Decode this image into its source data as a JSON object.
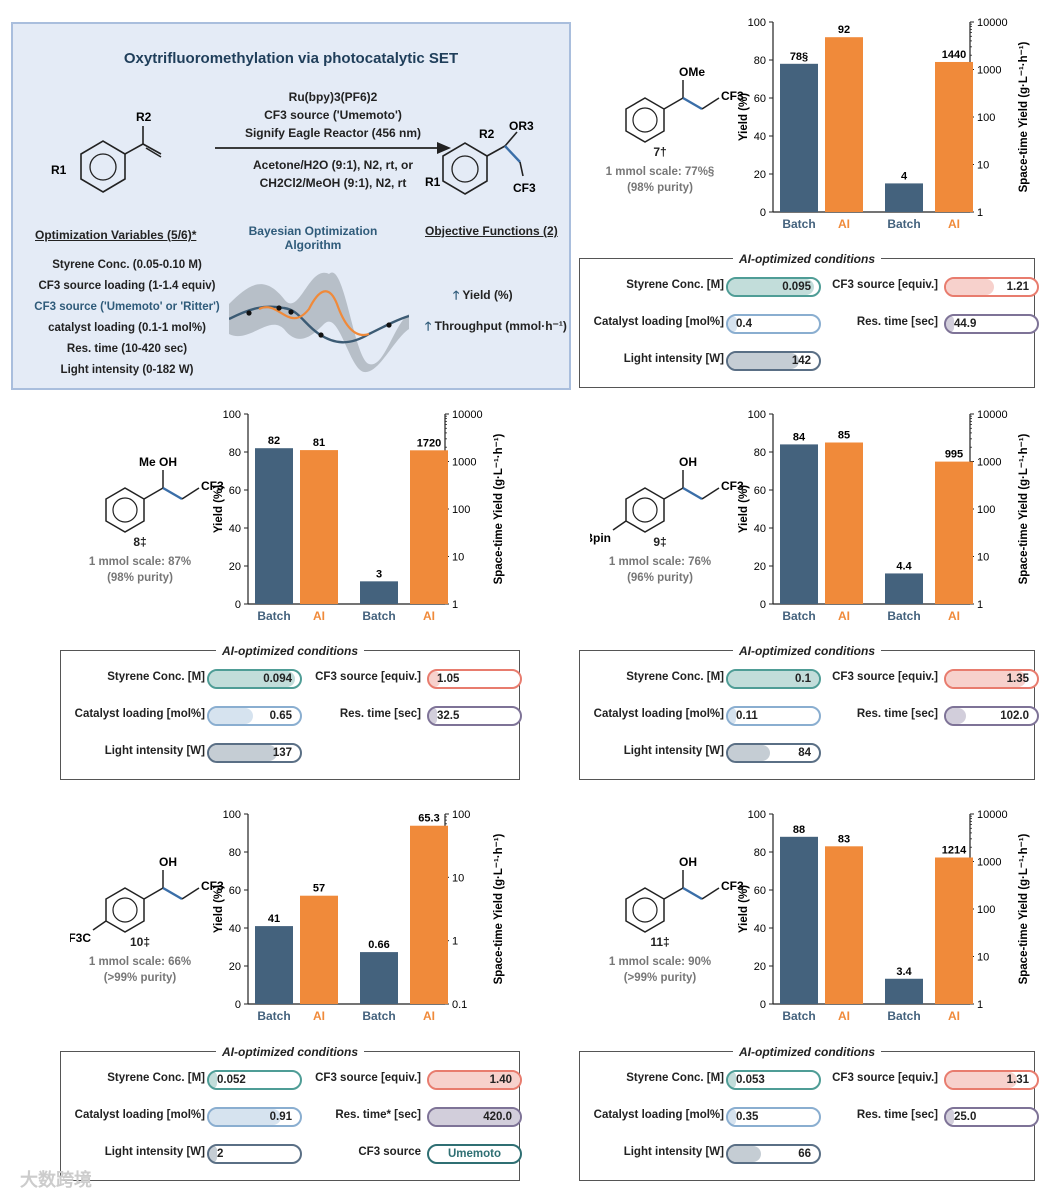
{
  "hero": {
    "title": "Oxytrifluoromethylation via photocatalytic SET",
    "reaction_lines_top": [
      "Ru(bpy)3(PF6)2",
      "CF3 source ('Umemoto')",
      "Signify Eagle Reactor (456 nm)"
    ],
    "reaction_lines_bottom": [
      "Acetone/H2O (9:1), N2, rt, or",
      "CH2Cl2/MeOH (9:1), N2, rt"
    ],
    "substrate_labels": {
      "r1": "R1",
      "r2": "R2"
    },
    "product_labels": {
      "r1": "R1",
      "r2": "R2",
      "or3": "OR3",
      "cf3": "CF3"
    },
    "variables_heading": "Optimization Variables (5/6)*",
    "variables": [
      "Styrene Conc. (0.05-0.10 M)",
      "CF3 source loading (1-1.4 equiv)",
      "CF3 source ('Umemoto' or 'Ritter')",
      "catalyst loading (0.1-1 mol%)",
      "Res. time (10-420 sec)",
      "Light intensity (0-182 W)"
    ],
    "algorithm_heading": "Bayesian Optimization Algorithm",
    "objectives_heading": "Objective Functions (2)",
    "objectives": [
      "Yield (%)",
      "Throughput (mmol·h⁻¹)"
    ]
  },
  "panels": [
    {
      "compound": "7†",
      "substituents": {
        "top": "OMe",
        "side": "CF3",
        "para": ""
      },
      "scale_note": [
        "1 mmol scale: 77%§",
        "(98% purity)"
      ],
      "conditions_title": "AI-optimized conditions",
      "conditions": [
        {
          "label": "Styrene Conc. [M]",
          "value": "0.095",
          "fraction": 0.95,
          "color": "#4f9d96",
          "align": "r"
        },
        {
          "label": "CF3 source [equiv.]",
          "value": "1.21",
          "fraction": 0.53,
          "color": "#e87c6e",
          "align": "r"
        },
        {
          "label": "Catalyst loading [mol%]",
          "value": "0.4",
          "fraction": 0.1,
          "color": "#8aaed0",
          "align": "l"
        },
        {
          "label": "Res. time [sec]",
          "value": "44.9",
          "fraction": 0.08,
          "color": "#7e7397",
          "align": "l"
        },
        {
          "label": "Light intensity [W]",
          "value": "142",
          "fraction": 0.78,
          "color": "#5a6f85",
          "align": "r"
        }
      ]
    },
    {
      "compound": "8‡",
      "substituents": {
        "top": "OH",
        "side": "CF3",
        "para": "",
        "alpha": "Me"
      },
      "scale_note": [
        "1 mmol scale: 87%",
        "(98% purity)"
      ],
      "conditions_title": "AI-optimized conditions",
      "conditions": [
        {
          "label": "Styrene Conc. [M]",
          "value": "0.094",
          "fraction": 0.94,
          "color": "#4f9d96",
          "align": "r"
        },
        {
          "label": "CF3 source [equiv.]",
          "value": "1.05",
          "fraction": 0.12,
          "color": "#e87c6e",
          "align": "l"
        },
        {
          "label": "Catalyst loading [mol%]",
          "value": "0.65",
          "fraction": 0.48,
          "color": "#8aaed0",
          "align": "r"
        },
        {
          "label": "Res. time [sec]",
          "value": "32.5",
          "fraction": 0.06,
          "color": "#7e7397",
          "align": "l"
        },
        {
          "label": "Light intensity [W]",
          "value": "137",
          "fraction": 0.75,
          "color": "#5a6f85",
          "align": "r"
        }
      ]
    },
    {
      "compound": "9‡",
      "substituents": {
        "top": "OH",
        "side": "CF3",
        "para": "Bpin"
      },
      "scale_note": [
        "1 mmol scale: 76%",
        "(96% purity)"
      ],
      "conditions_title": "AI-optimized conditions",
      "conditions": [
        {
          "label": "Styrene Conc. [M]",
          "value": "0.1",
          "fraction": 1.0,
          "color": "#4f9d96",
          "align": "r"
        },
        {
          "label": "CF3 source [equiv.]",
          "value": "1.35",
          "fraction": 0.88,
          "color": "#e87c6e",
          "align": "r"
        },
        {
          "label": "Catalyst loading [mol%]",
          "value": "0.11",
          "fraction": 0.01,
          "color": "#8aaed0",
          "align": "l"
        },
        {
          "label": "Res. time [sec]",
          "value": "102.0",
          "fraction": 0.22,
          "color": "#7e7397",
          "align": "r"
        },
        {
          "label": "Light intensity [W]",
          "value": "84",
          "fraction": 0.46,
          "color": "#5a6f85",
          "align": "r"
        }
      ]
    },
    {
      "compound": "10‡",
      "substituents": {
        "top": "OH",
        "side": "CF3",
        "para": "F3C"
      },
      "scale_note": [
        "1 mmol scale: 66%",
        "(>99% purity)"
      ],
      "conditions_title": "AI-optimized conditions",
      "conditions": [
        {
          "label": "Styrene Conc. [M]",
          "value": "0.052",
          "fraction": 0.04,
          "color": "#4f9d96",
          "align": "l"
        },
        {
          "label": "CF3 source [equiv.]",
          "value": "1.40",
          "fraction": 1.0,
          "color": "#e87c6e",
          "align": "r"
        },
        {
          "label": "Catalyst loading [mol%]",
          "value": "0.91",
          "fraction": 0.79,
          "color": "#8aaed0",
          "align": "r"
        },
        {
          "label": "Res. time* [sec]",
          "value": "420.0",
          "fraction": 1.0,
          "color": "#7e7397",
          "align": "r"
        },
        {
          "label": "Light intensity [W]",
          "value": "2",
          "fraction": 0.01,
          "color": "#5a6f85",
          "align": "l"
        },
        {
          "label": "CF3 source",
          "value": "Umemoto",
          "fraction": 0,
          "color": "#2f6f73",
          "align": "c"
        }
      ]
    },
    {
      "compound": "11‡",
      "substituents": {
        "top": "OH",
        "side": "CF3",
        "para": ""
      },
      "scale_note": [
        "1 mmol scale: 90%",
        "(>99% purity)"
      ],
      "conditions_title": "AI-optimized conditions",
      "conditions": [
        {
          "label": "Styrene Conc. [M]",
          "value": "0.053",
          "fraction": 0.06,
          "color": "#4f9d96",
          "align": "l"
        },
        {
          "label": "CF3 source [equiv.]",
          "value": "1.31",
          "fraction": 0.78,
          "color": "#e87c6e",
          "align": "r"
        },
        {
          "label": "Catalyst loading [mol%]",
          "value": "0.35",
          "fraction": 0.05,
          "color": "#8aaed0",
          "align": "l"
        },
        {
          "label": "Res. time [sec]",
          "value": "25.0",
          "fraction": 0.04,
          "color": "#7e7397",
          "align": "l"
        },
        {
          "label": "Light intensity [W]",
          "value": "66",
          "fraction": 0.36,
          "color": "#5a6f85",
          "align": "r"
        }
      ]
    }
  ],
  "colors": {
    "batch": "#44627d",
    "ai": "#f08a3a",
    "batch_label": "#44627d",
    "ai_label": "#f08a3a"
  },
  "chart_data": [
    {
      "type": "bar",
      "compound": "7",
      "categories": [
        "Batch",
        "AI"
      ],
      "left": {
        "ylabel": "Yield (%)",
        "ylim": [
          0,
          100
        ],
        "ticks": [
          0,
          20,
          40,
          60,
          80,
          100
        ],
        "series": [
          {
            "name": "Batch",
            "value": 78,
            "label": "78§"
          },
          {
            "name": "AI",
            "value": 92,
            "label": "92"
          }
        ]
      },
      "right": {
        "ylabel": "Space-time Yield (g·L⁻¹·h⁻¹)",
        "scale": "log",
        "ylim": [
          1,
          10000
        ],
        "ticks": [
          "1",
          "10",
          "100",
          "1000",
          "10000"
        ],
        "series": [
          {
            "name": "Batch",
            "value": 4,
            "label": "4"
          },
          {
            "name": "AI",
            "value": 1440,
            "label": "1440"
          }
        ]
      }
    },
    {
      "type": "bar",
      "compound": "8",
      "categories": [
        "Batch",
        "AI"
      ],
      "left": {
        "ylabel": "Yield (%)",
        "ylim": [
          0,
          100
        ],
        "ticks": [
          0,
          20,
          40,
          60,
          80,
          100
        ],
        "series": [
          {
            "name": "Batch",
            "value": 82,
            "label": "82"
          },
          {
            "name": "AI",
            "value": 81,
            "label": "81"
          }
        ]
      },
      "right": {
        "ylabel": "Space-time Yield (g·L⁻¹·h⁻¹)",
        "scale": "log",
        "ylim": [
          1,
          10000
        ],
        "ticks": [
          "1",
          "10",
          "100",
          "1000",
          "10000"
        ],
        "series": [
          {
            "name": "Batch",
            "value": 3,
            "label": "3"
          },
          {
            "name": "AI",
            "value": 1720,
            "label": "1720"
          }
        ]
      }
    },
    {
      "type": "bar",
      "compound": "9",
      "categories": [
        "Batch",
        "AI"
      ],
      "left": {
        "ylabel": "Yield (%)",
        "ylim": [
          0,
          100
        ],
        "ticks": [
          0,
          20,
          40,
          60,
          80,
          100
        ],
        "series": [
          {
            "name": "Batch",
            "value": 84,
            "label": "84"
          },
          {
            "name": "AI",
            "value": 85,
            "label": "85"
          }
        ]
      },
      "right": {
        "ylabel": "Space-time Yield (g·L⁻¹·h⁻¹)",
        "scale": "log",
        "ylim": [
          1,
          10000
        ],
        "ticks": [
          "1",
          "10",
          "100",
          "1000",
          "10000"
        ],
        "series": [
          {
            "name": "Batch",
            "value": 4.4,
            "label": "4.4"
          },
          {
            "name": "AI",
            "value": 995,
            "label": "995"
          }
        ]
      }
    },
    {
      "type": "bar",
      "compound": "10",
      "categories": [
        "Batch",
        "AI"
      ],
      "left": {
        "ylabel": "Yield (%)",
        "ylim": [
          0,
          100
        ],
        "ticks": [
          0,
          20,
          40,
          60,
          80,
          100
        ],
        "series": [
          {
            "name": "Batch",
            "value": 41,
            "label": "41"
          },
          {
            "name": "AI",
            "value": 57,
            "label": "57"
          }
        ]
      },
      "right": {
        "ylabel": "Space-time Yield (g·L⁻¹·h⁻¹)",
        "scale": "log",
        "ylim": [
          0.1,
          100
        ],
        "ticks": [
          "0.1",
          "1",
          "10",
          "100"
        ],
        "series": [
          {
            "name": "Batch",
            "value": 0.66,
            "label": "0.66"
          },
          {
            "name": "AI",
            "value": 65.3,
            "label": "65.3"
          }
        ]
      }
    },
    {
      "type": "bar",
      "compound": "11",
      "categories": [
        "Batch",
        "AI"
      ],
      "left": {
        "ylabel": "Yield (%)",
        "ylim": [
          0,
          100
        ],
        "ticks": [
          0,
          20,
          40,
          60,
          80,
          100
        ],
        "series": [
          {
            "name": "Batch",
            "value": 88,
            "label": "88"
          },
          {
            "name": "AI",
            "value": 83,
            "label": "83"
          }
        ]
      },
      "right": {
        "ylabel": "Space-time Yield (g·L⁻¹·h⁻¹)",
        "scale": "log",
        "ylim": [
          1,
          10000
        ],
        "ticks": [
          "1",
          "10",
          "100",
          "1000",
          "10000"
        ],
        "series": [
          {
            "name": "Batch",
            "value": 3.4,
            "label": "3.4"
          },
          {
            "name": "AI",
            "value": 1214,
            "label": "1214"
          }
        ]
      }
    }
  ],
  "watermark": "大数跨境"
}
